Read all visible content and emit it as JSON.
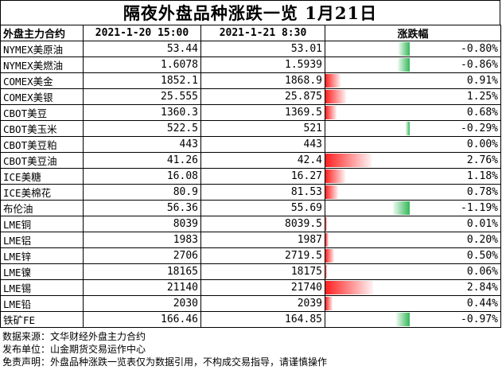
{
  "title": "隔夜外盘品种涨跌一览 1月21日",
  "headers": [
    "外盘主力合约",
    "2021-1-20 15:00",
    "2021-1-21 8:30",
    "涨跌幅"
  ],
  "rows": [
    {
      "name": "NYMEX美原油",
      "prev": "53.44",
      "curr": "53.01",
      "change": "-0.80%",
      "value": -0.8
    },
    {
      "name": "NYMEX美燃油",
      "prev": "1.6078",
      "curr": "1.5939",
      "change": "-0.86%",
      "value": -0.86
    },
    {
      "name": "COMEX美金",
      "prev": "1852.1",
      "curr": "1868.9",
      "change": "0.91%",
      "value": 0.91
    },
    {
      "name": "COMEX美银",
      "prev": "25.555",
      "curr": "25.875",
      "change": "1.25%",
      "value": 1.25
    },
    {
      "name": "CBOT美豆",
      "prev": "1360.3",
      "curr": "1369.5",
      "change": "0.68%",
      "value": 0.68
    },
    {
      "name": "CBOT美玉米",
      "prev": "522.5",
      "curr": "521",
      "change": "-0.29%",
      "value": -0.29
    },
    {
      "name": "CBOT美豆粕",
      "prev": "443",
      "curr": "443",
      "change": "0.00%",
      "value": 0.0
    },
    {
      "name": "CBOT美豆油",
      "prev": "41.26",
      "curr": "42.4",
      "change": "2.76%",
      "value": 2.76
    },
    {
      "name": "ICE美糖",
      "prev": "16.08",
      "curr": "16.27",
      "change": "1.18%",
      "value": 1.18
    },
    {
      "name": "ICE美棉花",
      "prev": "80.9",
      "curr": "81.53",
      "change": "0.78%",
      "value": 0.78
    },
    {
      "name": "布伦油",
      "prev": "56.36",
      "curr": "55.69",
      "change": "-1.19%",
      "value": -1.19
    },
    {
      "name": "LME铜",
      "prev": "8039",
      "curr": "8039.5",
      "change": "0.01%",
      "value": 0.01
    },
    {
      "name": "LME铝",
      "prev": "1983",
      "curr": "1987",
      "change": "0.20%",
      "value": 0.2
    },
    {
      "name": "LME锌",
      "prev": "2706",
      "curr": "2719.5",
      "change": "0.50%",
      "value": 0.5
    },
    {
      "name": "LME镍",
      "prev": "18165",
      "curr": "18175",
      "change": "0.06%",
      "value": 0.06
    },
    {
      "name": "LME锡",
      "prev": "21140",
      "curr": "21740",
      "change": "2.84%",
      "value": 2.84
    },
    {
      "name": "LME铅",
      "prev": "2030",
      "curr": "2039",
      "change": "0.44%",
      "value": 0.44
    },
    {
      "name": "铁矿FE",
      "prev": "166.46",
      "curr": "164.85",
      "change": "-0.97%",
      "value": -0.97
    }
  ],
  "bar_scale_max": 2.84,
  "colors": {
    "up": "#ff1f1f",
    "down": "#34b85a"
  },
  "notes": [
    "数据来源：文华财经外盘主力合约",
    "发布单位：山金期货交易运作中心",
    "免责声明：外盘品种涨跌一览表仅为数据引用，不构成交易指导，请谨慎操作"
  ]
}
